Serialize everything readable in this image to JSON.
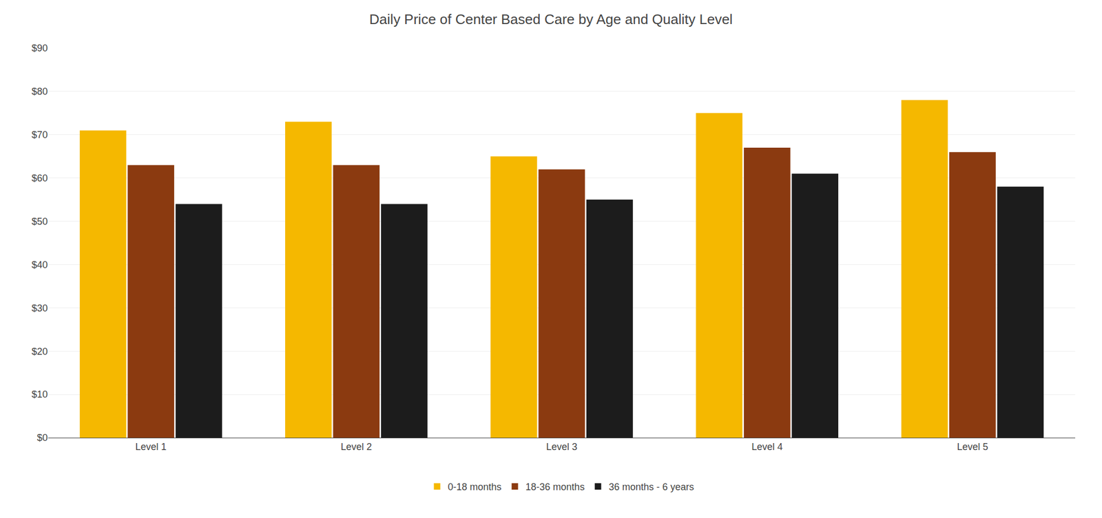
{
  "chart_data": {
    "type": "bar",
    "title": "Daily Price of Center Based Care by Age and Quality Level",
    "categories": [
      "Level 1",
      "Level 2",
      "Level 3",
      "Level 4",
      "Level 5"
    ],
    "series": [
      {
        "name": "0-18 months",
        "color": "#F5B800",
        "values": [
          71,
          73,
          65,
          75,
          78
        ]
      },
      {
        "name": "18-36 months",
        "color": "#8B3A10",
        "values": [
          63,
          63,
          62,
          67,
          66
        ]
      },
      {
        "name": "36 months - 6 years",
        "color": "#1C1C1C",
        "values": [
          54,
          54,
          55,
          61,
          58
        ]
      }
    ],
    "ylim": [
      0,
      90
    ],
    "yticks": [
      {
        "value": 0,
        "label": "$0"
      },
      {
        "value": 10,
        "label": "$10"
      },
      {
        "value": 20,
        "label": "$20"
      },
      {
        "value": 30,
        "label": "$30"
      },
      {
        "value": 40,
        "label": "$40"
      },
      {
        "value": 50,
        "label": "$50"
      },
      {
        "value": 60,
        "label": "$60"
      },
      {
        "value": 70,
        "label": "$70"
      },
      {
        "value": 80,
        "label": "$80"
      },
      {
        "value": 90,
        "label": "$90"
      }
    ],
    "grid": true,
    "legend": "bottom"
  }
}
